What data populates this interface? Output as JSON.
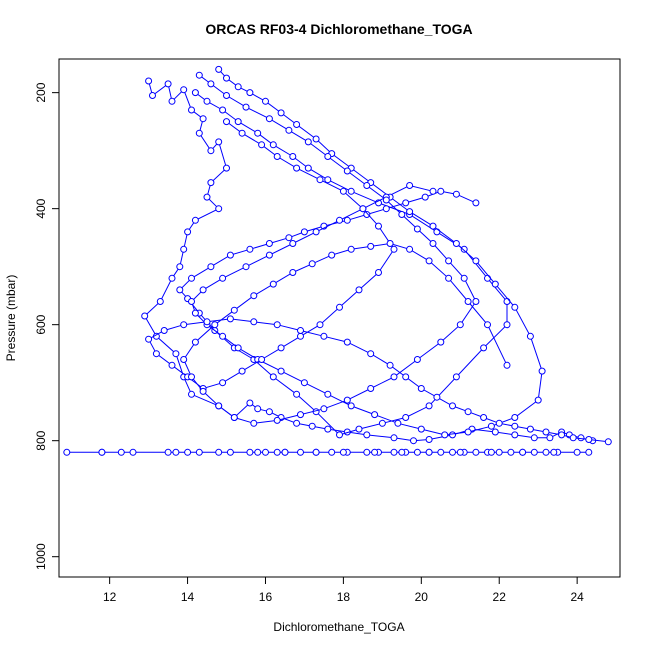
{
  "chart_data": {
    "type": "line",
    "title": "ORCAS RF03-4 Dichloromethane_TOGA",
    "xlabel": "Dichloromethane_TOGA",
    "ylabel": "Pressure (mbar)",
    "xlim": [
      10.7,
      25.1
    ],
    "ylim": [
      1035,
      142
    ],
    "y_reversed": true,
    "x_ticks": [
      12,
      14,
      16,
      18,
      20,
      22,
      24
    ],
    "y_ticks": [
      200,
      400,
      600,
      800,
      1000
    ],
    "marker": "open-circle",
    "color": "#0000ff",
    "grid": false,
    "legend": "none",
    "series": [
      {
        "x": [
          13.0,
          13.1,
          13.5,
          13.6,
          13.9,
          14.1,
          14.4,
          14.3,
          14.6,
          14.8,
          15.0,
          14.6,
          14.5,
          14.8,
          14.2,
          14.0,
          13.9,
          13.8,
          13.6,
          13.3,
          12.9,
          13.2,
          13.7,
          13.9,
          14.1,
          14.8,
          15.2,
          15.6,
          15.8,
          16.1,
          16.4,
          16.8,
          17.2,
          17.6,
          18.1,
          18.6,
          19.3,
          19.8,
          20.2,
          20.8,
          21.3,
          21.9,
          22.4,
          22.9,
          23.3,
          23.6,
          23.8,
          24.1,
          24.4
        ],
        "y": [
          180,
          205,
          185,
          215,
          195,
          230,
          245,
          270,
          300,
          285,
          330,
          355,
          380,
          400,
          420,
          440,
          470,
          500,
          520,
          560,
          585,
          620,
          650,
          690,
          720,
          740,
          760,
          735,
          745,
          750,
          760,
          770,
          775,
          780,
          785,
          790,
          795,
          800,
          798,
          790,
          780,
          785,
          790,
          795,
          795,
          785,
          790,
          795,
          800
        ]
      },
      {
        "x": [
          14.2,
          14.5,
          14.9,
          15.3,
          15.8,
          16.2,
          16.7,
          17.1,
          17.6,
          18.2,
          18.9,
          19.7,
          20.4,
          21.1,
          21.7,
          22.2,
          22.2,
          21.6,
          20.9,
          20.2,
          19.6,
          19.0,
          18.4,
          17.9,
          17.3,
          16.8,
          16.2,
          15.7,
          15.2,
          14.7,
          14.3,
          14.0,
          13.8,
          14.1,
          14.6,
          15.1,
          15.6,
          16.1,
          16.6,
          17.0,
          17.5,
          18.1,
          18.6,
          19.1,
          19.6,
          20.1,
          20.5,
          20.9,
          21.4
        ],
        "y": [
          200,
          215,
          230,
          250,
          270,
          290,
          310,
          330,
          350,
          370,
          390,
          410,
          440,
          470,
          520,
          560,
          600,
          640,
          690,
          740,
          760,
          770,
          780,
          790,
          750,
          720,
          690,
          660,
          640,
          610,
          580,
          555,
          540,
          520,
          500,
          480,
          470,
          460,
          450,
          440,
          430,
          420,
          410,
          400,
          390,
          380,
          370,
          375,
          390
        ]
      },
      {
        "x": [
          14.8,
          15.0,
          15.3,
          15.6,
          16.0,
          16.4,
          16.8,
          17.3,
          17.7,
          18.2,
          18.7,
          19.2,
          19.7,
          20.3,
          20.9,
          21.4,
          21.9,
          22.4,
          22.8,
          23.1,
          23.0,
          22.4,
          21.8,
          21.2,
          20.6,
          20.0,
          19.4,
          18.8,
          18.2,
          17.6,
          17.0,
          16.4,
          15.8,
          15.3,
          14.9,
          14.5,
          14.2,
          14.1,
          14.4,
          14.9,
          15.5,
          16.1,
          16.7,
          17.3,
          17.9,
          18.5,
          19.1,
          19.7,
          20.3
        ],
        "y": [
          160,
          175,
          190,
          200,
          215,
          235,
          255,
          280,
          305,
          330,
          355,
          380,
          405,
          430,
          460,
          490,
          530,
          570,
          620,
          680,
          730,
          760,
          775,
          785,
          790,
          780,
          770,
          755,
          740,
          720,
          700,
          680,
          660,
          640,
          620,
          600,
          580,
          560,
          540,
          520,
          500,
          480,
          460,
          440,
          420,
          400,
          380,
          360,
          370
        ]
      },
      {
        "x": [
          10.9,
          11.8,
          12.3,
          13.7,
          14.0,
          14.8,
          15.6,
          16.0,
          16.3,
          16.5,
          16.9,
          17.3,
          17.7,
          18.1,
          18.6,
          18.9,
          19.3,
          19.6,
          19.9,
          20.2,
          20.5,
          20.8,
          21.1,
          21.4,
          21.7,
          22.0,
          22.3,
          22.6,
          22.9,
          23.2,
          23.5,
          24.0,
          24.3,
          23.4,
          22.6,
          21.8,
          21.0,
          20.2,
          19.5,
          18.8,
          18.0,
          17.3,
          16.5,
          15.8,
          15.1,
          14.3,
          13.5,
          12.6,
          11.8
        ],
        "y": [
          820,
          820,
          820,
          820,
          820,
          820,
          820,
          820,
          820,
          820,
          820,
          820,
          820,
          820,
          820,
          820,
          820,
          820,
          820,
          820,
          820,
          820,
          820,
          820,
          820,
          820,
          820,
          820,
          820,
          820,
          820,
          820,
          820,
          820,
          820,
          820,
          820,
          820,
          820,
          820,
          820,
          820,
          820,
          820,
          820,
          820,
          820,
          820,
          820
        ]
      },
      {
        "x": [
          15.0,
          15.4,
          15.9,
          16.3,
          16.8,
          17.4,
          18.0,
          18.5,
          18.9,
          19.3,
          18.9,
          18.4,
          17.9,
          17.4,
          16.9,
          16.4,
          15.9,
          15.4,
          14.9,
          14.4,
          14.0,
          13.6,
          13.2,
          13.0,
          13.4,
          13.9,
          14.5,
          15.1,
          15.7,
          16.3,
          16.9,
          17.5,
          18.1,
          18.7,
          19.2,
          19.6,
          20.0,
          20.4,
          20.8,
          21.2,
          21.6,
          22.0,
          22.4,
          22.8,
          23.2,
          23.6,
          23.9,
          24.3,
          24.8
        ],
        "y": [
          250,
          270,
          290,
          310,
          330,
          350,
          370,
          400,
          430,
          470,
          510,
          540,
          570,
          600,
          620,
          640,
          660,
          680,
          700,
          710,
          690,
          670,
          650,
          625,
          610,
          600,
          595,
          590,
          595,
          600,
          610,
          620,
          630,
          650,
          670,
          690,
          710,
          725,
          740,
          750,
          760,
          770,
          775,
          780,
          785,
          790,
          795,
          798,
          802
        ]
      },
      {
        "x": [
          14.3,
          14.6,
          15.0,
          15.5,
          16.1,
          16.6,
          17.1,
          17.6,
          18.1,
          18.6,
          19.1,
          19.5,
          19.9,
          20.3,
          20.7,
          21.1,
          21.4,
          21.0,
          20.5,
          19.9,
          19.3,
          18.7,
          18.1,
          17.5,
          16.9,
          16.3,
          15.7,
          15.2,
          14.8,
          14.4,
          14.1,
          13.9,
          14.2,
          14.7,
          15.2,
          15.7,
          16.2,
          16.7,
          17.2,
          17.7,
          18.2,
          18.7,
          19.2,
          19.7,
          20.2,
          20.7,
          21.2,
          21.7,
          22.2
        ],
        "y": [
          170,
          185,
          205,
          225,
          245,
          265,
          285,
          310,
          335,
          360,
          385,
          410,
          435,
          460,
          490,
          520,
          560,
          600,
          630,
          660,
          690,
          710,
          730,
          745,
          755,
          765,
          770,
          760,
          740,
          715,
          690,
          660,
          630,
          600,
          575,
          550,
          530,
          510,
          495,
          480,
          470,
          465,
          460,
          470,
          490,
          520,
          560,
          600,
          670
        ]
      }
    ]
  }
}
